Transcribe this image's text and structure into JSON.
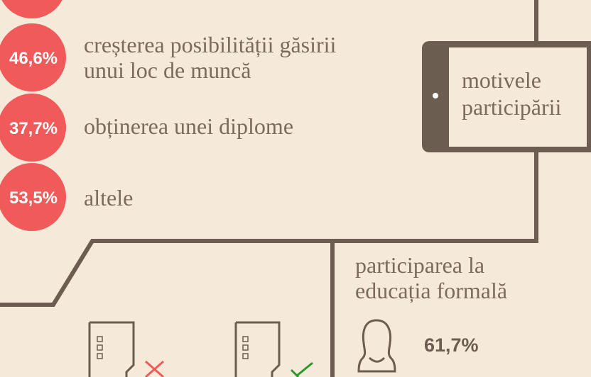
{
  "items": [
    {
      "value": "46,6%",
      "lines": [
        "creșterea posibilității găsirii",
        "unui loc de muncă"
      ]
    },
    {
      "value": "37,7%",
      "lines": [
        "obținerea unei diplome"
      ]
    },
    {
      "value": "53,5%",
      "lines": [
        "altele"
      ]
    }
  ],
  "tablet": {
    "lines": [
      "motivele",
      "participării"
    ]
  },
  "formal": {
    "lines": [
      "participarea la",
      "educația formală"
    ],
    "female": "61,7%"
  }
}
